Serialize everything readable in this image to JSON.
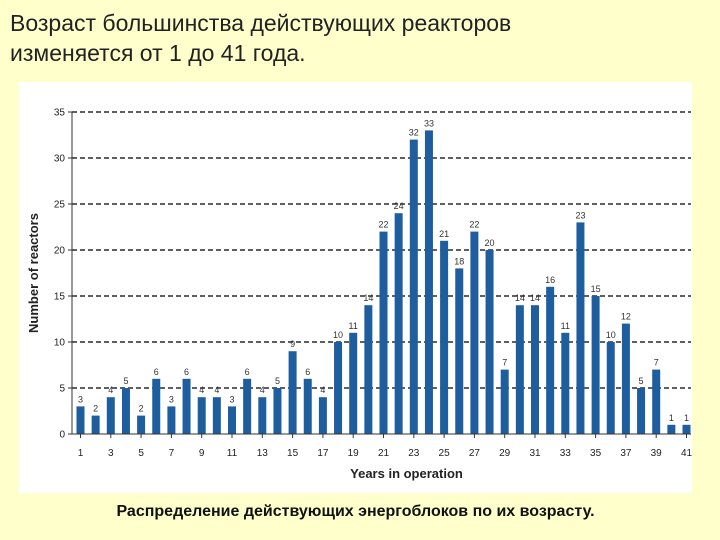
{
  "slide": {
    "title_line1": "Возраст большинства действующих реакторов",
    "title_line2": "изменяется от 1 до 41 года.",
    "caption": "Распределение действующих энергоблоков по их возрасту."
  },
  "colors": {
    "bar": "#1f5e9e",
    "background": "#ffffcc",
    "panel": "#ffffff",
    "grid": "#000000"
  },
  "chart_data": {
    "type": "bar",
    "categories": [
      1,
      2,
      3,
      4,
      5,
      6,
      7,
      8,
      9,
      10,
      11,
      12,
      13,
      14,
      15,
      16,
      17,
      18,
      19,
      20,
      21,
      22,
      23,
      24,
      25,
      26,
      27,
      28,
      29,
      30,
      31,
      32,
      33,
      34,
      35,
      36,
      37,
      38,
      39,
      40,
      41
    ],
    "values": [
      3,
      2,
      4,
      5,
      2,
      6,
      3,
      6,
      4,
      4,
      3,
      6,
      4,
      5,
      9,
      6,
      4,
      10,
      11,
      14,
      22,
      24,
      32,
      33,
      21,
      18,
      22,
      20,
      7,
      14,
      14,
      16,
      11,
      23,
      15,
      10,
      12,
      5,
      7,
      1,
      1
    ],
    "data_labels": [
      "3",
      "2",
      "4",
      "5",
      "2",
      "6",
      "3",
      "6",
      "4",
      "4",
      "3",
      "6",
      "4",
      "5",
      "9",
      "6",
      "4",
      "10",
      "11",
      "14",
      "22",
      "24",
      "32",
      "33",
      "21",
      "18",
      "22",
      "20",
      "7",
      "14",
      "14",
      "16",
      "11",
      "23",
      "15",
      "10",
      "12",
      "5",
      "7",
      "1",
      "1"
    ],
    "x_tick_labels": [
      "1",
      "3",
      "5",
      "7",
      "9",
      "11",
      "13",
      "15",
      "17",
      "19",
      "21",
      "23",
      "25",
      "27",
      "29",
      "31",
      "33",
      "35",
      "37",
      "39",
      "41"
    ],
    "y_tick_labels": [
      "0",
      "5",
      "10",
      "15",
      "20",
      "25",
      "30",
      "35"
    ],
    "y_ticks": [
      0,
      5,
      10,
      15,
      20,
      25,
      30,
      35
    ],
    "xlabel": "Years in operation",
    "ylabel": "Number of reactors",
    "ylim": [
      0,
      35
    ],
    "grid": "dashed horizontal"
  }
}
